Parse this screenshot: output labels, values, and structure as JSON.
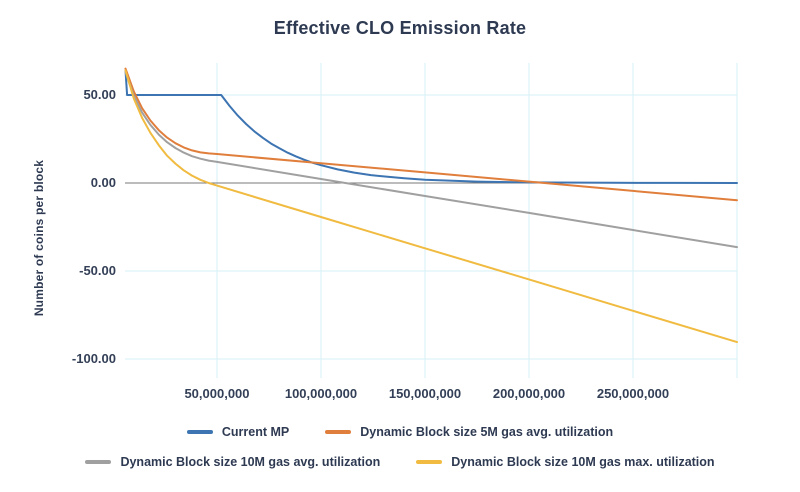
{
  "chart_data": {
    "type": "line",
    "title": "Effective CLO Emission Rate",
    "ylabel": "Number of coins per block",
    "xlabel": "",
    "xlim": [
      6000000,
      300000000
    ],
    "ylim": [
      -110,
      70
    ],
    "grid": true,
    "legend_position": "bottom",
    "colors": {
      "gridline": "#d5f1f8",
      "zero_line": "#7a7a7a",
      "text": "#2e3a52"
    },
    "x_ticks": [
      {
        "value": 50000000,
        "label": "50,000,000"
      },
      {
        "value": 100000000,
        "label": "100,000,000"
      },
      {
        "value": 150000000,
        "label": "150,000,000"
      },
      {
        "value": 200000000,
        "label": "200,000,000"
      },
      {
        "value": 250000000,
        "label": "250,000,000"
      }
    ],
    "x_gridlines": [
      50000000,
      100000000,
      150000000,
      200000000,
      250000000,
      300000000
    ],
    "y_ticks": [
      {
        "value": 50,
        "label": "50.00"
      },
      {
        "value": 0,
        "label": "0.00"
      },
      {
        "value": -50,
        "label": "-50.00"
      },
      {
        "value": -100,
        "label": "-100.00"
      }
    ],
    "y_gridlines": [
      50,
      0,
      -50,
      -100
    ],
    "zero_line_value": 0,
    "series": [
      {
        "name": "Current MP",
        "color": "#3d74b2",
        "points": [
          [
            6000000,
            64
          ],
          [
            6800000,
            50
          ],
          [
            52000000,
            50
          ],
          [
            56000000,
            43.8
          ],
          [
            60000000,
            38.3
          ],
          [
            64000000,
            33.5
          ],
          [
            68000000,
            29.3
          ],
          [
            72000000,
            25.7
          ],
          [
            76000000,
            22.4
          ],
          [
            80000000,
            19.7
          ],
          [
            84000000,
            17.2
          ],
          [
            88000000,
            15.1
          ],
          [
            92000000,
            13.2
          ],
          [
            96000000,
            11.5
          ],
          [
            100000000,
            10.1
          ],
          [
            108000000,
            7.7
          ],
          [
            116000000,
            5.9
          ],
          [
            124000000,
            4.5
          ],
          [
            132000000,
            3.5
          ],
          [
            140000000,
            2.7
          ],
          [
            150000000,
            1.9
          ],
          [
            160000000,
            1.4
          ],
          [
            175000000,
            0.8
          ],
          [
            190000000,
            0.5
          ],
          [
            210000000,
            0.3
          ],
          [
            240000000,
            0.1
          ],
          [
            270000000,
            0.04
          ],
          [
            300000000,
            0.02
          ]
        ]
      },
      {
        "name": "Dynamic Block size 5M gas avg. utilization",
        "color": "#e07e3c",
        "points": [
          [
            6000000,
            65
          ],
          [
            10000000,
            52
          ],
          [
            14000000,
            42.5
          ],
          [
            18000000,
            35.5
          ],
          [
            22000000,
            30
          ],
          [
            26000000,
            25.8
          ],
          [
            30000000,
            22.6
          ],
          [
            34000000,
            20.2
          ],
          [
            38000000,
            18.5
          ],
          [
            42000000,
            17.4
          ],
          [
            46000000,
            16.8
          ],
          [
            50000000,
            16.5
          ],
          [
            100000000,
            11.2
          ],
          [
            150000000,
            6
          ],
          [
            200000000,
            0.8
          ],
          [
            250000000,
            -4.5
          ],
          [
            300000000,
            -9.8
          ]
        ]
      },
      {
        "name": "Dynamic Block size 10M gas avg. utilization",
        "color": "#a0a0a0",
        "points": [
          [
            6000000,
            63
          ],
          [
            10000000,
            49.5
          ],
          [
            14000000,
            40
          ],
          [
            18000000,
            33
          ],
          [
            22000000,
            27.5
          ],
          [
            26000000,
            23.2
          ],
          [
            30000000,
            19.9
          ],
          [
            34000000,
            17.3
          ],
          [
            38000000,
            15.2
          ],
          [
            42000000,
            13.8
          ],
          [
            46000000,
            12.7
          ],
          [
            50000000,
            12
          ],
          [
            100000000,
            2.3
          ],
          [
            150000000,
            -7.4
          ],
          [
            200000000,
            -17
          ],
          [
            250000000,
            -26.7
          ],
          [
            300000000,
            -36.4
          ]
        ]
      },
      {
        "name": "Dynamic Block size 10M gas max. utilization",
        "color": "#f0bb40",
        "points": [
          [
            6000000,
            64
          ],
          [
            10000000,
            48
          ],
          [
            14000000,
            37
          ],
          [
            18000000,
            28.5
          ],
          [
            22000000,
            21.5
          ],
          [
            26000000,
            15.5
          ],
          [
            30000000,
            11
          ],
          [
            34000000,
            7.2
          ],
          [
            38000000,
            4.2
          ],
          [
            42000000,
            1.8
          ],
          [
            46000000,
            0
          ],
          [
            50000000,
            -1.5
          ],
          [
            100000000,
            -19.3
          ],
          [
            150000000,
            -37.1
          ],
          [
            200000000,
            -54.8
          ],
          [
            250000000,
            -72.6
          ],
          [
            300000000,
            -90.4
          ]
        ]
      }
    ]
  }
}
